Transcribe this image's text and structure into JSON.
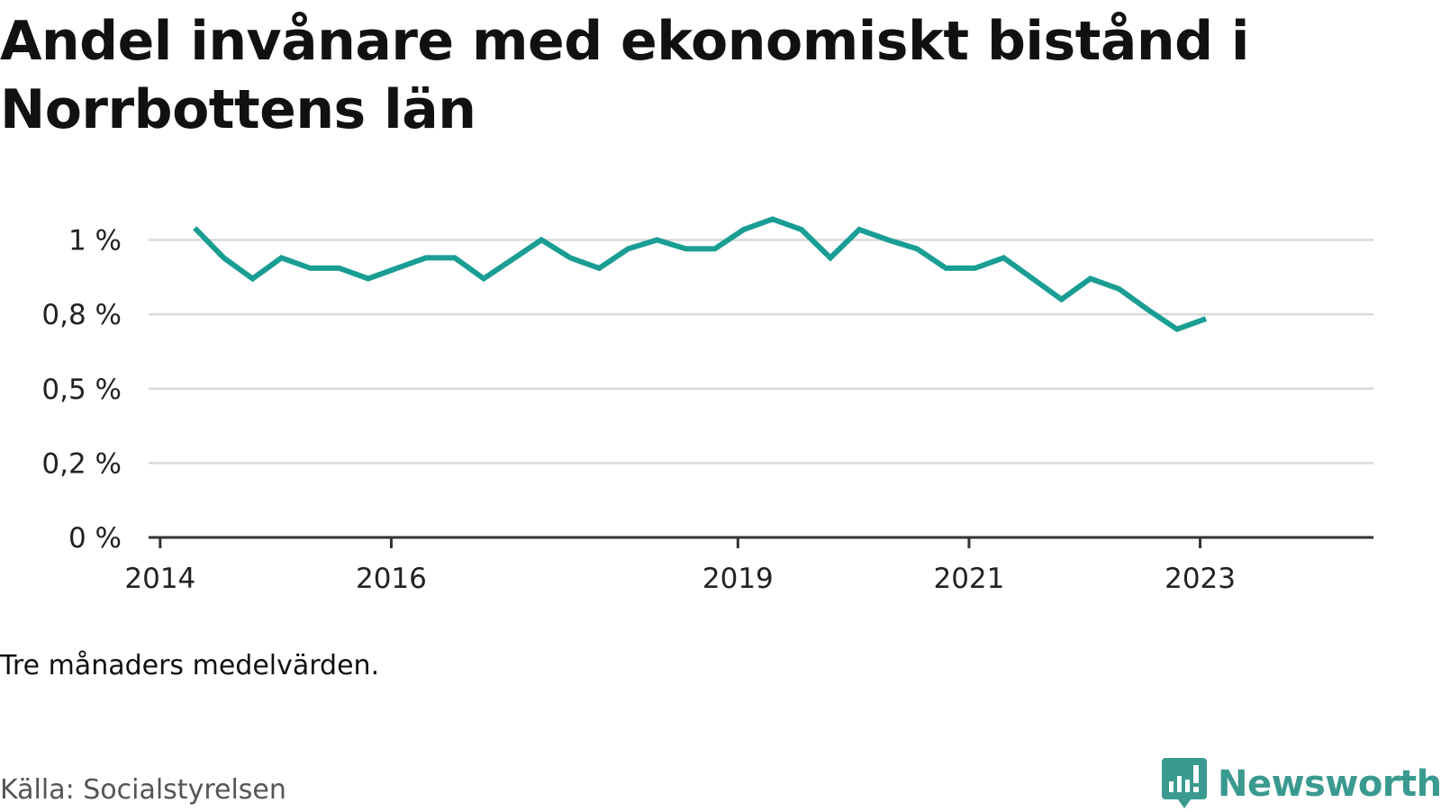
{
  "title": "Andel invånare med ekonomiskt bistånd i Norrbottens län",
  "note": "Tre månaders medelvärden.",
  "source": "Källa: Socialstyrelsen",
  "brand": {
    "name": "Newsworthy",
    "icon": "newsworthy-logo-icon",
    "color": "#3a9a8f"
  },
  "colors": {
    "line": "#1a9e94",
    "grid": "#d9d9d9",
    "axis": "#333333"
  },
  "chart_data": {
    "type": "line",
    "title": "Andel invånare med ekonomiskt bistånd i Norrbottens län",
    "xlabel": "",
    "ylabel": "",
    "ylim": [
      0,
      1.05
    ],
    "xlim": [
      2013.9,
      2024.5
    ],
    "grid": true,
    "legend": "none",
    "x_ticks": [
      2014,
      2016,
      2019,
      2021,
      2023
    ],
    "x_tick_labels": [
      "2014",
      "2016",
      "2019",
      "2021",
      "2023"
    ],
    "y_ticks": [
      0,
      0.25,
      0.5,
      0.75,
      1.0
    ],
    "y_tick_labels": [
      "0 %",
      "0,2 %",
      "0,5 %",
      "0,8 %",
      "1 %"
    ],
    "series": [
      {
        "values": [
          {
            "x": 2014.3,
            "y": 1.04
          },
          {
            "x": 2014.55,
            "y": 0.94
          },
          {
            "x": 2014.8,
            "y": 0.87
          },
          {
            "x": 2015.05,
            "y": 0.94
          },
          {
            "x": 2015.3,
            "y": 0.905
          },
          {
            "x": 2015.55,
            "y": 0.905
          },
          {
            "x": 2015.8,
            "y": 0.87
          },
          {
            "x": 2016.05,
            "y": 0.905
          },
          {
            "x": 2016.3,
            "y": 0.94
          },
          {
            "x": 2016.55,
            "y": 0.94
          },
          {
            "x": 2016.8,
            "y": 0.87
          },
          {
            "x": 2017.05,
            "y": 0.935
          },
          {
            "x": 2017.3,
            "y": 1.0
          },
          {
            "x": 2017.55,
            "y": 0.94
          },
          {
            "x": 2017.8,
            "y": 0.905
          },
          {
            "x": 2018.05,
            "y": 0.97
          },
          {
            "x": 2018.3,
            "y": 1.0
          },
          {
            "x": 2018.55,
            "y": 0.97
          },
          {
            "x": 2018.8,
            "y": 0.97
          },
          {
            "x": 2019.05,
            "y": 1.035
          },
          {
            "x": 2019.3,
            "y": 1.07
          },
          {
            "x": 2019.55,
            "y": 1.035
          },
          {
            "x": 2019.8,
            "y": 0.94
          },
          {
            "x": 2020.05,
            "y": 1.035
          },
          {
            "x": 2020.3,
            "y": 1.0
          },
          {
            "x": 2020.55,
            "y": 0.97
          },
          {
            "x": 2020.8,
            "y": 0.905
          },
          {
            "x": 2021.05,
            "y": 0.905
          },
          {
            "x": 2021.3,
            "y": 0.94
          },
          {
            "x": 2021.55,
            "y": 0.87
          },
          {
            "x": 2021.8,
            "y": 0.8
          },
          {
            "x": 2022.05,
            "y": 0.87
          },
          {
            "x": 2022.3,
            "y": 0.835
          },
          {
            "x": 2022.55,
            "y": 0.765
          },
          {
            "x": 2022.8,
            "y": 0.7
          },
          {
            "x": 2023.05,
            "y": 0.735
          }
        ]
      }
    ]
  }
}
